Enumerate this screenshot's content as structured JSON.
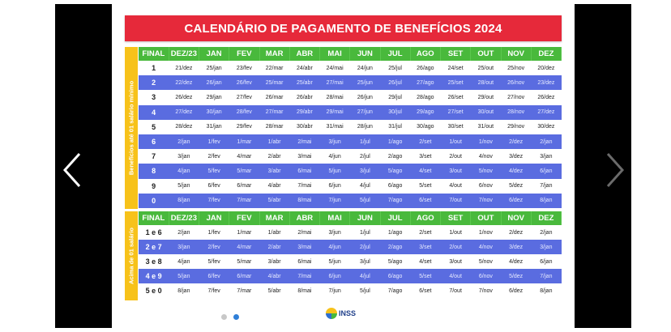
{
  "title": "CALENDÁRIO DE PAGAMENTO DE BENEFÍCIOS 2024",
  "colors": {
    "title_bg": "#e6293a",
    "header_bg": "#49b93c",
    "label_bg": "#f7c21a",
    "blue_row": "#5a6ce0"
  },
  "side_label_top": "Benefícios até 01 salário mínimo",
  "side_label_bottom": "Acima de 01 salário",
  "columns": [
    "FINAL",
    "DEZ/23",
    "JAN",
    "FEV",
    "MAR",
    "ABR",
    "MAI",
    "JUN",
    "JUL",
    "AGO",
    "SET",
    "OUT",
    "NOV",
    "DEZ"
  ],
  "table_top": [
    [
      "1",
      "21/dez",
      "25/jan",
      "23/fev",
      "22/mar",
      "24/abr",
      "24/mai",
      "24/jun",
      "25/jul",
      "26/ago",
      "24/set",
      "25/out",
      "25/nov",
      "20/dez"
    ],
    [
      "2",
      "22/dez",
      "26/jan",
      "26/fev",
      "25/mar",
      "25/abr",
      "27/mai",
      "25/jun",
      "26/jul",
      "27/ago",
      "25/set",
      "28/out",
      "26/nov",
      "23/dez"
    ],
    [
      "3",
      "26/dez",
      "29/jan",
      "27/fev",
      "26/mar",
      "26/abr",
      "28/mai",
      "26/jun",
      "29/jul",
      "28/ago",
      "26/set",
      "29/out",
      "27/nov",
      "26/dez"
    ],
    [
      "4",
      "27/dez",
      "30/jan",
      "28/fev",
      "27/mar",
      "29/abr",
      "29/mai",
      "27/jun",
      "30/jul",
      "29/ago",
      "27/set",
      "30/out",
      "28/nov",
      "27/dez"
    ],
    [
      "5",
      "28/dez",
      "31/jan",
      "29/fev",
      "28/mar",
      "30/abr",
      "31/mai",
      "28/jun",
      "31/jul",
      "30/ago",
      "30/set",
      "31/out",
      "29/nov",
      "30/dez"
    ],
    [
      "6",
      "2/jan",
      "1/fev",
      "1/mar",
      "1/abr",
      "2/mai",
      "3/jun",
      "1/jul",
      "1/ago",
      "2/set",
      "1/out",
      "1/nov",
      "2/dez",
      "2/jan"
    ],
    [
      "7",
      "3/jan",
      "2/fev",
      "4/mar",
      "2/abr",
      "3/mai",
      "4/jun",
      "2/jul",
      "2/ago",
      "3/set",
      "2/out",
      "4/nov",
      "3/dez",
      "3/jan"
    ],
    [
      "8",
      "4/jan",
      "5/fev",
      "5/mar",
      "3/abr",
      "6/mai",
      "5/jun",
      "3/jul",
      "5/ago",
      "4/set",
      "3/out",
      "5/nov",
      "4/dez",
      "6/jan"
    ],
    [
      "9",
      "5/jan",
      "6/fev",
      "6/mar",
      "4/abr",
      "7/mai",
      "6/jun",
      "4/jul",
      "6/ago",
      "5/set",
      "4/out",
      "6/nov",
      "5/dez",
      "7/jan"
    ],
    [
      "0",
      "8/jan",
      "7/fev",
      "7/mar",
      "5/abr",
      "8/mai",
      "7/jun",
      "5/jul",
      "7/ago",
      "6/set",
      "7/out",
      "7/nov",
      "6/dez",
      "8/jan"
    ]
  ],
  "table_bottom": [
    [
      "1 e 6",
      "2/jan",
      "1/fev",
      "1/mar",
      "1/abr",
      "2/mai",
      "3/jun",
      "1/jul",
      "1/ago",
      "2/set",
      "1/out",
      "1/nov",
      "2/dez",
      "2/jan"
    ],
    [
      "2 e 7",
      "3/jan",
      "2/fev",
      "4/mar",
      "2/abr",
      "3/mai",
      "4/jun",
      "2/jul",
      "2/ago",
      "3/set",
      "2/out",
      "4/nov",
      "3/dez",
      "3/jan"
    ],
    [
      "3 e 8",
      "4/jan",
      "5/fev",
      "5/mar",
      "3/abr",
      "6/mai",
      "5/jun",
      "3/jul",
      "5/ago",
      "4/set",
      "3/out",
      "5/nov",
      "4/dez",
      "6/jan"
    ],
    [
      "4 e 9",
      "5/jan",
      "6/fev",
      "6/mar",
      "4/abr",
      "7/mai",
      "6/jun",
      "4/jul",
      "6/ago",
      "5/set",
      "4/out",
      "6/nov",
      "5/dez",
      "7/jan"
    ],
    [
      "5 e 0",
      "8/jan",
      "7/fev",
      "7/mar",
      "5/abr",
      "8/mai",
      "7/jun",
      "5/jul",
      "7/ago",
      "6/set",
      "7/out",
      "7/nov",
      "6/dez",
      "8/jan"
    ]
  ],
  "footer": {
    "logo_text": "INSS"
  },
  "carousel": {
    "slide_count": 2,
    "active_slide": 2
  }
}
